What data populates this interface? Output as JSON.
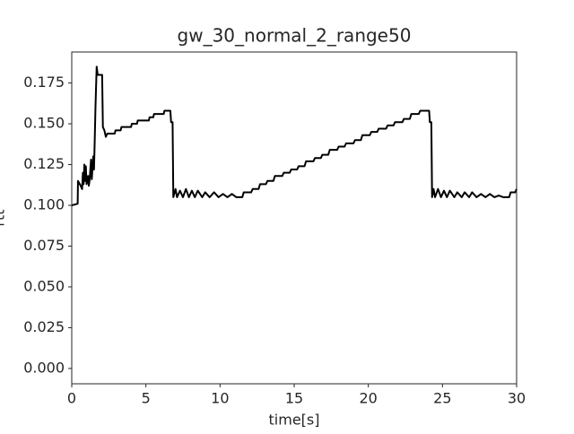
{
  "chart_data": {
    "type": "line",
    "title": "gw_30_normal_2_range50",
    "x_label": "time[s]",
    "y_label": "rtt",
    "xlim": [
      0,
      30
    ],
    "ylim": [
      -0.0094,
      0.194
    ],
    "xticks": [
      0,
      5,
      10,
      15,
      20,
      25,
      30
    ],
    "yticks": [
      {
        "value": 0,
        "label": "0.000"
      },
      {
        "value": 0.025,
        "label": "0.025"
      },
      {
        "value": 0.05,
        "label": "0.050"
      },
      {
        "value": 0.075,
        "label": "0.075"
      },
      {
        "value": 0.1,
        "label": "0.100"
      },
      {
        "value": 0.125,
        "label": "0.125"
      },
      {
        "value": 0.15,
        "label": "0.150"
      },
      {
        "value": 0.175,
        "label": "0.175"
      }
    ],
    "grid": false,
    "series": [
      {
        "color": "#000000",
        "x": [
          0,
          0.4,
          0.42,
          0.6,
          0.7,
          0.75,
          0.8,
          0.85,
          0.9,
          0.95,
          1.0,
          1.1,
          1.15,
          1.2,
          1.3,
          1.35,
          1.45,
          1.5,
          1.55,
          1.6,
          1.68,
          1.75,
          2.05,
          2.1,
          2.2,
          2.3,
          2.4,
          2.9,
          2.95,
          3.3,
          3.35,
          4.0,
          4.05,
          4.4,
          4.45,
          5.2,
          5.25,
          5.5,
          5.55,
          6.2,
          6.25,
          6.65,
          6.7,
          6.8,
          6.85,
          7.0,
          7.1,
          7.3,
          7.5,
          7.7,
          7.9,
          8.1,
          8.3,
          8.5,
          8.8,
          9.0,
          9.3,
          9.6,
          9.9,
          10.2,
          10.5,
          10.8,
          11.1,
          11.5,
          11.6,
          12.1,
          12.2,
          12.6,
          12.7,
          13.1,
          13.2,
          13.6,
          13.7,
          14.2,
          14.3,
          14.7,
          14.8,
          15.2,
          15.3,
          15.7,
          15.8,
          16.3,
          16.4,
          16.8,
          16.9,
          17.3,
          17.4,
          17.9,
          18.0,
          18.4,
          18.5,
          19.0,
          19.1,
          19.5,
          19.6,
          20.1,
          20.2,
          20.6,
          20.7,
          21.2,
          21.3,
          21.7,
          21.8,
          22.3,
          22.4,
          22.8,
          22.9,
          23.4,
          23.5,
          24.1,
          24.15,
          24.25,
          24.3,
          24.4,
          24.5,
          24.7,
          24.9,
          25.1,
          25.3,
          25.5,
          25.8,
          26.0,
          26.3,
          26.5,
          26.8,
          27.0,
          27.3,
          27.6,
          27.9,
          28.2,
          28.5,
          28.8,
          29.1,
          29.5,
          29.6,
          29.9,
          30
        ],
        "values": [
          0.1,
          0.101,
          0.115,
          0.112,
          0.11,
          0.12,
          0.113,
          0.125,
          0.115,
          0.124,
          0.113,
          0.118,
          0.112,
          0.115,
          0.128,
          0.116,
          0.13,
          0.122,
          0.14,
          0.16,
          0.185,
          0.18,
          0.18,
          0.148,
          0.146,
          0.142,
          0.144,
          0.144,
          0.146,
          0.146,
          0.148,
          0.148,
          0.15,
          0.15,
          0.152,
          0.152,
          0.154,
          0.154,
          0.156,
          0.156,
          0.158,
          0.158,
          0.151,
          0.151,
          0.105,
          0.11,
          0.105,
          0.109,
          0.105,
          0.11,
          0.105,
          0.109,
          0.105,
          0.109,
          0.105,
          0.108,
          0.105,
          0.108,
          0.105,
          0.107,
          0.105,
          0.107,
          0.105,
          0.105,
          0.108,
          0.108,
          0.11,
          0.11,
          0.113,
          0.113,
          0.115,
          0.115,
          0.118,
          0.118,
          0.12,
          0.12,
          0.122,
          0.122,
          0.124,
          0.124,
          0.127,
          0.127,
          0.129,
          0.129,
          0.131,
          0.131,
          0.134,
          0.134,
          0.136,
          0.136,
          0.138,
          0.138,
          0.14,
          0.14,
          0.143,
          0.143,
          0.145,
          0.145,
          0.147,
          0.147,
          0.149,
          0.149,
          0.151,
          0.151,
          0.153,
          0.153,
          0.156,
          0.156,
          0.158,
          0.158,
          0.151,
          0.151,
          0.105,
          0.11,
          0.105,
          0.11,
          0.105,
          0.109,
          0.105,
          0.109,
          0.105,
          0.108,
          0.105,
          0.108,
          0.105,
          0.108,
          0.105,
          0.107,
          0.105,
          0.107,
          0.105,
          0.106,
          0.105,
          0.105,
          0.108,
          0.108,
          0.11
        ]
      }
    ]
  }
}
